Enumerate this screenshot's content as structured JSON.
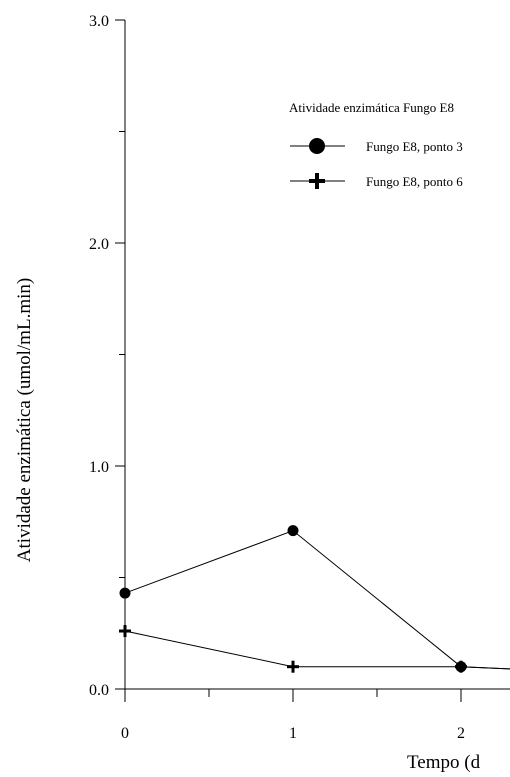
{
  "chart_data": {
    "type": "line",
    "title": "",
    "xlabel": "Tempo (d",
    "ylabel": "Atividade enzimática (umol/mL.min)",
    "x_ticks": [
      "0",
      "1",
      "2"
    ],
    "y_ticks": [
      "0.0",
      "1.0",
      "2.0",
      "3.0"
    ],
    "xlim": [
      0,
      2.3
    ],
    "ylim": [
      0,
      3.0
    ],
    "grid": false,
    "legend": {
      "title": "Atividade enzimática Fungo E8",
      "position": "top-right"
    },
    "series": [
      {
        "name": "Fungo E8, ponto 3",
        "marker": "circle",
        "x": [
          0,
          1,
          2,
          2.3
        ],
        "y": [
          0.43,
          0.71,
          0.1,
          0.09
        ]
      },
      {
        "name": "Fungo E8, ponto 6",
        "marker": "plus",
        "x": [
          0,
          1,
          2,
          2.3
        ],
        "y": [
          0.26,
          0.1,
          0.1,
          0.09
        ]
      }
    ]
  }
}
